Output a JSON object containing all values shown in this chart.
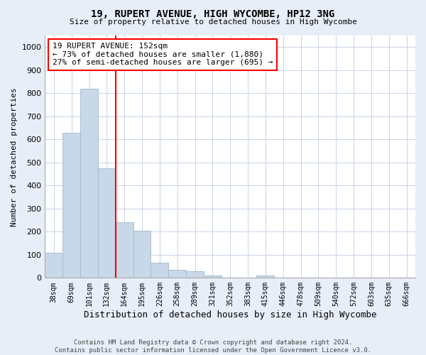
{
  "title1": "19, RUPERT AVENUE, HIGH WYCOMBE, HP12 3NG",
  "title2": "Size of property relative to detached houses in High Wycombe",
  "xlabel": "Distribution of detached houses by size in High Wycombe",
  "ylabel": "Number of detached properties",
  "footer1": "Contains HM Land Registry data © Crown copyright and database right 2024.",
  "footer2": "Contains public sector information licensed under the Open Government Licence v3.0.",
  "bar_labels": [
    "38sqm",
    "69sqm",
    "101sqm",
    "132sqm",
    "164sqm",
    "195sqm",
    "226sqm",
    "258sqm",
    "289sqm",
    "321sqm",
    "352sqm",
    "383sqm",
    "415sqm",
    "446sqm",
    "478sqm",
    "509sqm",
    "540sqm",
    "572sqm",
    "603sqm",
    "635sqm",
    "666sqm"
  ],
  "bar_values": [
    110,
    630,
    820,
    475,
    240,
    205,
    65,
    35,
    30,
    10,
    0,
    0,
    10,
    0,
    0,
    0,
    0,
    0,
    0,
    0,
    0
  ],
  "bar_color": "#c8d8e8",
  "bar_edgecolor": "#a0b8cc",
  "vline_position": 3.5,
  "annotation_line1": "19 RUPERT AVENUE: 152sqm",
  "annotation_line2": "← 73% of detached houses are smaller (1,880)",
  "annotation_line3": "27% of semi-detached houses are larger (695) →",
  "annotation_box_facecolor": "white",
  "annotation_box_edgecolor": "red",
  "vline_color": "red",
  "ylim": [
    0,
    1050
  ],
  "yticks": [
    0,
    100,
    200,
    300,
    400,
    500,
    600,
    700,
    800,
    900,
    1000
  ],
  "grid_color": "#c8d4e8",
  "plot_background": "white",
  "figure_background": "#e8eef8"
}
